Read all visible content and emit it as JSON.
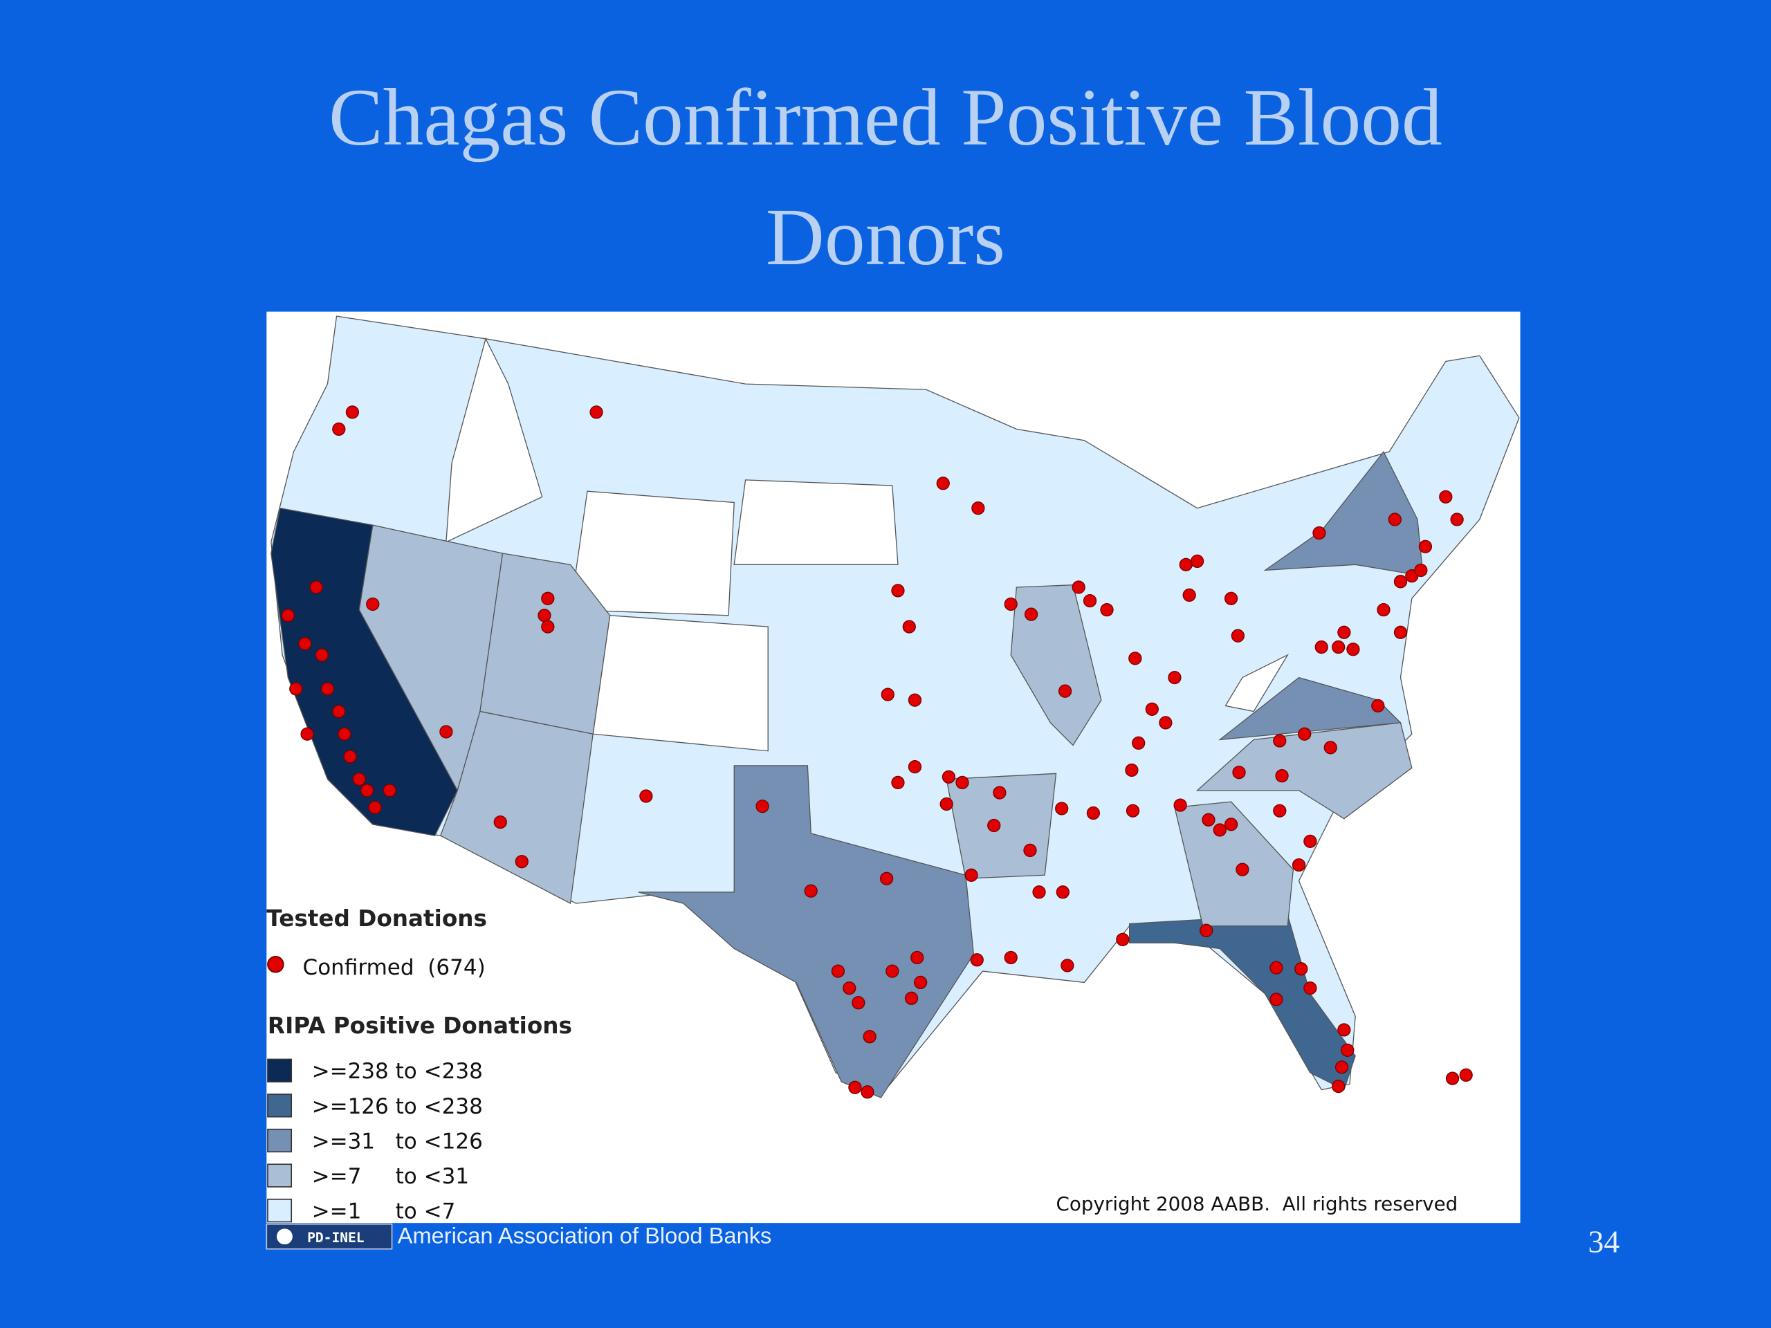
{
  "title_lines": [
    "Chagas Confirmed Positive Blood",
    "Donors"
  ],
  "map": {
    "legend_title": "Tested Donations",
    "confirmed_label": "Confirmed  (674)",
    "ripa_title": "RIPA Positive Donations",
    "ripa_items": [
      {
        "label": ">=238 to <238",
        "color": "#0b2a55"
      },
      {
        "label": ">=126 to <238",
        "color": "#3f6790"
      },
      {
        "label": ">=31   to <126",
        "color": "#7590b3"
      },
      {
        "label": ">=7     to <31",
        "color": "#aabfd6"
      },
      {
        "label": ">=1     to <7",
        "color": "#d9efff"
      }
    ],
    "copyright": "Copyright 2008 AABB.  All rights reserved"
  },
  "footer": {
    "badge": "PD-INEL",
    "source": "American Association of Blood Banks",
    "page_number": "34"
  }
}
